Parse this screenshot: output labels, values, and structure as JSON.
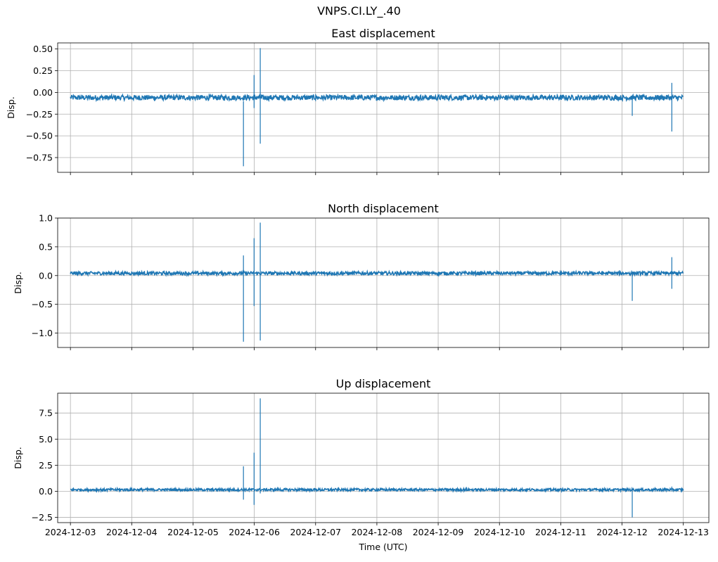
{
  "figure": {
    "suptitle": "VNPS.CI.LY_.40",
    "xlabel": "Time (UTC)"
  },
  "chart_data": [
    {
      "type": "line",
      "title": "East displacement",
      "ylabel": "Disp.",
      "xlim": [
        "2024-12-02T19:00",
        "2024-12-13T10:00"
      ],
      "ylim": [
        -0.92,
        0.57
      ],
      "yticks": [
        0.5,
        0.25,
        0.0,
        -0.25,
        -0.5,
        -0.75
      ],
      "ytick_labels": [
        "0.50",
        "0.25",
        "0.00",
        "−0.25",
        "−0.50",
        "−0.75"
      ],
      "xticks": [
        "2024-12-03",
        "2024-12-04",
        "2024-12-05",
        "2024-12-06",
        "2024-12-07",
        "2024-12-08",
        "2024-12-09",
        "2024-12-10",
        "2024-12-11",
        "2024-12-12",
        "2024-12-13"
      ],
      "xtick_labels_visible": false,
      "grid": true,
      "color": "#1f77b4",
      "series": [
        {
          "baseline_x": [
            "2024-12-03T00:00",
            "2024-12-04T00:00",
            "2024-12-05T00:00",
            "2024-12-06T00:00",
            "2024-12-07T00:00",
            "2024-12-08T00:00",
            "2024-12-09T00:00",
            "2024-12-10T00:00",
            "2024-12-11T00:00",
            "2024-12-12T00:00",
            "2024-12-13T00:00"
          ],
          "baseline_y": [
            -0.06,
            -0.06,
            -0.06,
            -0.06,
            -0.06,
            -0.06,
            -0.06,
            -0.06,
            -0.06,
            -0.06,
            -0.06
          ],
          "noise_band": 0.03,
          "spikes": [
            {
              "x": "2024-12-05T19:45",
              "high": -0.1,
              "low": -0.85
            },
            {
              "x": "2024-12-05T23:55",
              "high": 0.2,
              "low": -0.18
            },
            {
              "x": "2024-12-06T02:20",
              "high": 0.51,
              "low": -0.59
            },
            {
              "x": "2024-12-07T00:00",
              "high": -0.02,
              "low": -0.1
            },
            {
              "x": "2024-12-12T04:00",
              "high": -0.05,
              "low": -0.27
            },
            {
              "x": "2024-12-12T19:30",
              "high": 0.11,
              "low": -0.45
            }
          ]
        }
      ]
    },
    {
      "type": "line",
      "title": "North displacement",
      "ylabel": "Disp.",
      "xlim": [
        "2024-12-02T19:00",
        "2024-12-13T10:00"
      ],
      "ylim": [
        -1.25,
        1.0
      ],
      "yticks": [
        1.0,
        0.5,
        0.0,
        -0.5,
        -1.0
      ],
      "ytick_labels": [
        "1.0",
        "0.5",
        "0.0",
        "−0.5",
        "−1.0"
      ],
      "xticks": [
        "2024-12-03",
        "2024-12-04",
        "2024-12-05",
        "2024-12-06",
        "2024-12-07",
        "2024-12-08",
        "2024-12-09",
        "2024-12-10",
        "2024-12-11",
        "2024-12-12",
        "2024-12-13"
      ],
      "xtick_labels_visible": false,
      "grid": true,
      "color": "#1f77b4",
      "series": [
        {
          "baseline_x": [
            "2024-12-03T00:00",
            "2024-12-04T00:00",
            "2024-12-05T00:00",
            "2024-12-06T00:00",
            "2024-12-07T00:00",
            "2024-12-08T00:00",
            "2024-12-09T00:00",
            "2024-12-10T00:00",
            "2024-12-11T00:00",
            "2024-12-12T00:00",
            "2024-12-13T00:00"
          ],
          "baseline_y": [
            0.04,
            0.04,
            0.04,
            0.04,
            0.04,
            0.04,
            0.04,
            0.04,
            0.04,
            0.04,
            0.04
          ],
          "noise_band": 0.03,
          "spikes": [
            {
              "x": "2024-12-05T19:45",
              "high": 0.35,
              "low": -1.15
            },
            {
              "x": "2024-12-05T23:55",
              "high": 0.65,
              "low": -0.53
            },
            {
              "x": "2024-12-06T02:20",
              "high": 0.92,
              "low": -1.13
            },
            {
              "x": "2024-12-12T04:00",
              "high": 0.05,
              "low": -0.44
            },
            {
              "x": "2024-12-12T19:30",
              "high": 0.32,
              "low": -0.23
            }
          ]
        }
      ]
    },
    {
      "type": "line",
      "title": "Up displacement",
      "ylabel": "Disp.",
      "xlim": [
        "2024-12-02T19:00",
        "2024-12-13T10:00"
      ],
      "ylim": [
        -3.0,
        9.4
      ],
      "yticks": [
        7.5,
        5.0,
        2.5,
        0.0,
        -2.5
      ],
      "ytick_labels": [
        "7.5",
        "5.0",
        "2.5",
        "0.0",
        "−2.5"
      ],
      "xticks": [
        "2024-12-03",
        "2024-12-04",
        "2024-12-05",
        "2024-12-06",
        "2024-12-07",
        "2024-12-08",
        "2024-12-09",
        "2024-12-10",
        "2024-12-11",
        "2024-12-12",
        "2024-12-13"
      ],
      "xtick_labels": [
        "2024-12-03",
        "2024-12-04",
        "2024-12-05",
        "2024-12-06",
        "2024-12-07",
        "2024-12-08",
        "2024-12-09",
        "2024-12-10",
        "2024-12-11",
        "2024-12-12",
        "2024-12-13"
      ],
      "xtick_labels_visible": true,
      "grid": true,
      "color": "#1f77b4",
      "series": [
        {
          "baseline_x": [
            "2024-12-03T00:00",
            "2024-12-04T00:00",
            "2024-12-05T00:00",
            "2024-12-06T00:00",
            "2024-12-07T00:00",
            "2024-12-08T00:00",
            "2024-12-09T00:00",
            "2024-12-10T00:00",
            "2024-12-11T00:00",
            "2024-12-12T00:00",
            "2024-12-13T00:00"
          ],
          "baseline_y": [
            0.15,
            0.15,
            0.15,
            0.15,
            0.15,
            0.15,
            0.15,
            0.15,
            0.15,
            0.15,
            0.15
          ],
          "noise_band": 0.12,
          "spikes": [
            {
              "x": "2024-12-05T19:45",
              "high": 2.4,
              "low": -0.8
            },
            {
              "x": "2024-12-05T23:55",
              "high": 3.7,
              "low": -1.3
            },
            {
              "x": "2024-12-06T02:20",
              "high": 8.9,
              "low": -0.2
            },
            {
              "x": "2024-12-12T04:00",
              "high": 0.1,
              "low": -2.5
            },
            {
              "x": "2024-12-12T19:30",
              "high": 0.45,
              "low": 0.0
            }
          ]
        }
      ]
    }
  ]
}
